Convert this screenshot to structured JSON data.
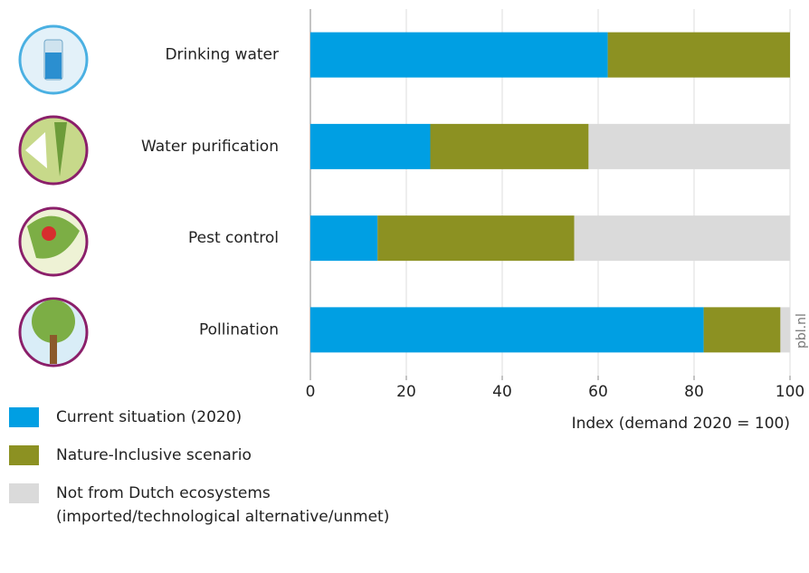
{
  "chart_data": {
    "type": "stacked-bar-horizontal",
    "categories": [
      "Drinking water",
      "Water purification",
      "Pest control",
      "Pollination"
    ],
    "series": [
      {
        "name": "Current situation (2020)",
        "color": "#009fe3",
        "values": [
          62,
          25,
          14,
          82
        ]
      },
      {
        "name": "Nature-Inclusive scenario",
        "color": "#8c9122",
        "values": [
          38,
          33,
          41,
          16
        ]
      },
      {
        "name": "Not from Dutch ecosystems\n(imported/technological alternative/unmet)",
        "color": "#dadada",
        "values": [
          0,
          42,
          45,
          2
        ]
      }
    ],
    "xlim": [
      0,
      100
    ],
    "xticks": [
      0,
      20,
      40,
      60,
      80,
      100
    ],
    "x_label": "Index (demand 2020 = 100)",
    "source": "pbl.nl",
    "grid": true
  }
}
